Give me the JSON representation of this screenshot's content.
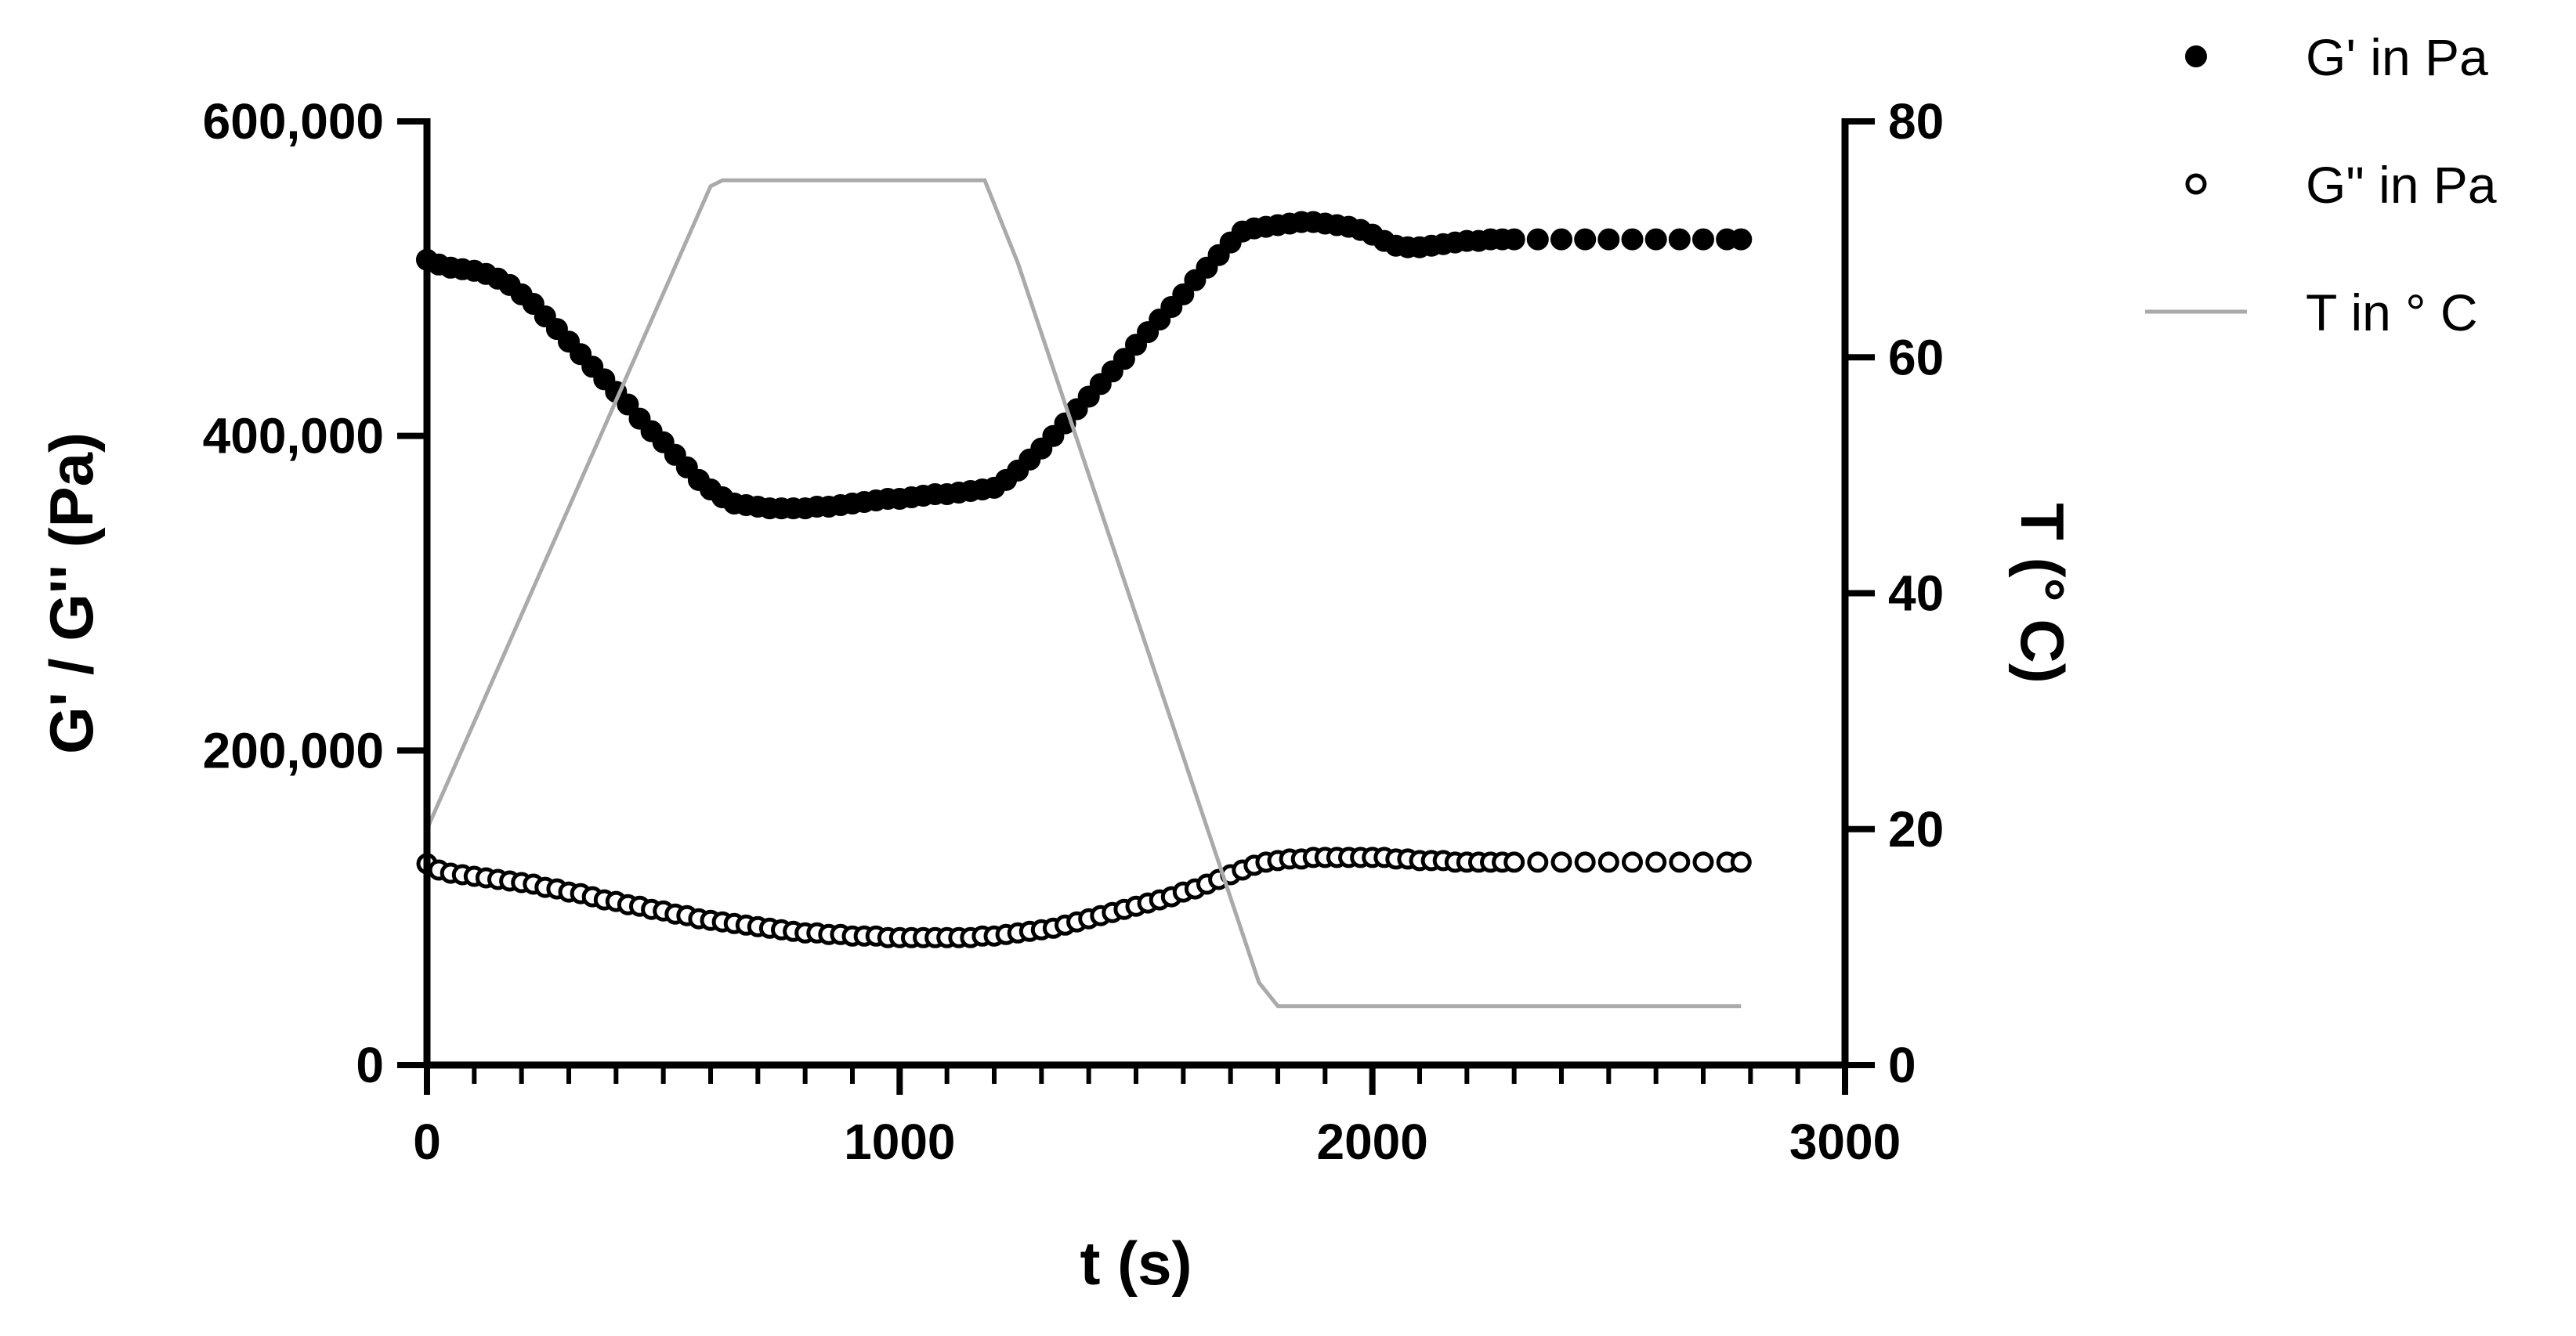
{
  "chart_data": {
    "type": "scatter",
    "title": "",
    "xlabel": "t (s)",
    "ylabel_left": "G' / G'' (Pa)",
    "ylabel_right": "T (° C)",
    "xlim": [
      0,
      3000
    ],
    "ylim_left": [
      0,
      600000
    ],
    "ylim_right": [
      0,
      80
    ],
    "grid": false,
    "legend_position": "top-right outside",
    "x_ticks": [
      {
        "value": 0,
        "label": "0"
      },
      {
        "value": 1000,
        "label": "1000"
      },
      {
        "value": 2000,
        "label": "2000"
      },
      {
        "value": 3000,
        "label": "3000"
      }
    ],
    "y_left_ticks": [
      {
        "value": 0,
        "label": "0"
      },
      {
        "value": 200000,
        "label": "200,000"
      },
      {
        "value": 400000,
        "label": "400,000"
      },
      {
        "value": 600000,
        "label": "600,000"
      }
    ],
    "y_right_ticks": [
      {
        "value": 0,
        "label": "0"
      },
      {
        "value": 20,
        "label": "20"
      },
      {
        "value": 40,
        "label": "40"
      },
      {
        "value": 60,
        "label": "60"
      },
      {
        "value": 80,
        "label": "80"
      }
    ],
    "series": [
      {
        "name": "G' in Pa",
        "axis": "left",
        "marker": "filled-circle",
        "color": "#000000",
        "x": [
          0,
          25,
          50,
          75,
          100,
          125,
          150,
          175,
          200,
          225,
          250,
          275,
          300,
          325,
          350,
          375,
          400,
          425,
          450,
          475,
          500,
          525,
          550,
          575,
          600,
          625,
          650,
          675,
          700,
          725,
          750,
          775,
          800,
          825,
          850,
          875,
          900,
          925,
          950,
          975,
          1000,
          1025,
          1050,
          1075,
          1100,
          1125,
          1150,
          1175,
          1200,
          1225,
          1250,
          1275,
          1300,
          1325,
          1350,
          1375,
          1400,
          1425,
          1450,
          1475,
          1500,
          1525,
          1550,
          1575,
          1600,
          1625,
          1650,
          1675,
          1700,
          1725,
          1750,
          1775,
          1800,
          1825,
          1850,
          1875,
          1900,
          1925,
          1950,
          1975,
          2000,
          2025,
          2050,
          2075,
          2100,
          2125,
          2150,
          2175,
          2200,
          2225,
          2250,
          2275,
          2300,
          2350,
          2400,
          2450,
          2500,
          2550,
          2600,
          2650,
          2700,
          2750,
          2780
        ],
        "y": [
          512000,
          509000,
          507000,
          506000,
          505000,
          503000,
          500000,
          496000,
          490000,
          484000,
          476000,
          468000,
          460000,
          452000,
          444000,
          436000,
          428000,
          420000,
          411000,
          403000,
          396000,
          388000,
          380000,
          372000,
          366000,
          361000,
          357000,
          356000,
          355000,
          354000,
          354000,
          354000,
          354000,
          355000,
          355000,
          356000,
          357000,
          358000,
          359000,
          360000,
          360000,
          361000,
          362000,
          363000,
          363000,
          364000,
          365000,
          366000,
          367000,
          372000,
          378000,
          385000,
          392000,
          400000,
          408000,
          417000,
          425000,
          433000,
          441000,
          449000,
          458000,
          466000,
          474000,
          482000,
          490000,
          499000,
          507000,
          515000,
          523000,
          530000,
          532000,
          533000,
          534000,
          535000,
          536000,
          536000,
          535000,
          534000,
          533000,
          531000,
          528000,
          524000,
          521000,
          520000,
          520000,
          521000,
          522000,
          523000,
          524000,
          524000,
          525000,
          525000,
          525000,
          525000,
          525000,
          525000,
          525000,
          525000,
          525000,
          525000,
          525000,
          525000,
          525000
        ]
      },
      {
        "name": "G\" in Pa",
        "axis": "left",
        "marker": "open-circle",
        "color": "#000000",
        "x": [
          0,
          25,
          50,
          75,
          100,
          125,
          150,
          175,
          200,
          225,
          250,
          275,
          300,
          325,
          350,
          375,
          400,
          425,
          450,
          475,
          500,
          525,
          550,
          575,
          600,
          625,
          650,
          675,
          700,
          725,
          750,
          775,
          800,
          825,
          850,
          875,
          900,
          925,
          950,
          975,
          1000,
          1025,
          1050,
          1075,
          1100,
          1125,
          1150,
          1175,
          1200,
          1225,
          1250,
          1275,
          1300,
          1325,
          1350,
          1375,
          1400,
          1425,
          1450,
          1475,
          1500,
          1525,
          1550,
          1575,
          1600,
          1625,
          1650,
          1675,
          1700,
          1725,
          1750,
          1775,
          1800,
          1825,
          1850,
          1875,
          1900,
          1925,
          1950,
          1975,
          2000,
          2025,
          2050,
          2075,
          2100,
          2125,
          2150,
          2175,
          2200,
          2225,
          2250,
          2275,
          2300,
          2350,
          2400,
          2450,
          2500,
          2550,
          2600,
          2650,
          2700,
          2750,
          2780
        ],
        "y": [
          128000,
          124000,
          122000,
          121000,
          120000,
          119000,
          118000,
          117000,
          116000,
          115000,
          113000,
          112000,
          110000,
          109000,
          107000,
          105000,
          104000,
          102000,
          101000,
          99000,
          98000,
          96000,
          95000,
          93000,
          92000,
          91000,
          90000,
          89000,
          88000,
          87000,
          86000,
          85000,
          84000,
          84000,
          83000,
          83000,
          82000,
          82000,
          82000,
          81000,
          81000,
          81000,
          81000,
          81000,
          81000,
          81000,
          81000,
          82000,
          82000,
          83000,
          84000,
          85000,
          86000,
          87000,
          89000,
          91000,
          93000,
          95000,
          97000,
          99000,
          101000,
          103000,
          105000,
          107000,
          110000,
          112000,
          115000,
          118000,
          121000,
          124000,
          127000,
          129000,
          130000,
          131000,
          131000,
          132000,
          132000,
          132000,
          132000,
          132000,
          132000,
          132000,
          131000,
          131000,
          130000,
          130000,
          130000,
          129000,
          129000,
          129000,
          129000,
          129000,
          129000,
          129000,
          129000,
          129000,
          129000,
          129000,
          129000,
          129000,
          129000,
          129000,
          129000
        ]
      },
      {
        "name": "T in ° C",
        "axis": "right",
        "marker": "line",
        "color": "#aaaaaa",
        "x": [
          0,
          600,
          625,
          1180,
          1250,
          1760,
          1800,
          1850,
          2780
        ],
        "y": [
          20,
          74.5,
          75,
          75,
          68,
          7,
          5,
          5,
          5
        ]
      }
    ]
  }
}
